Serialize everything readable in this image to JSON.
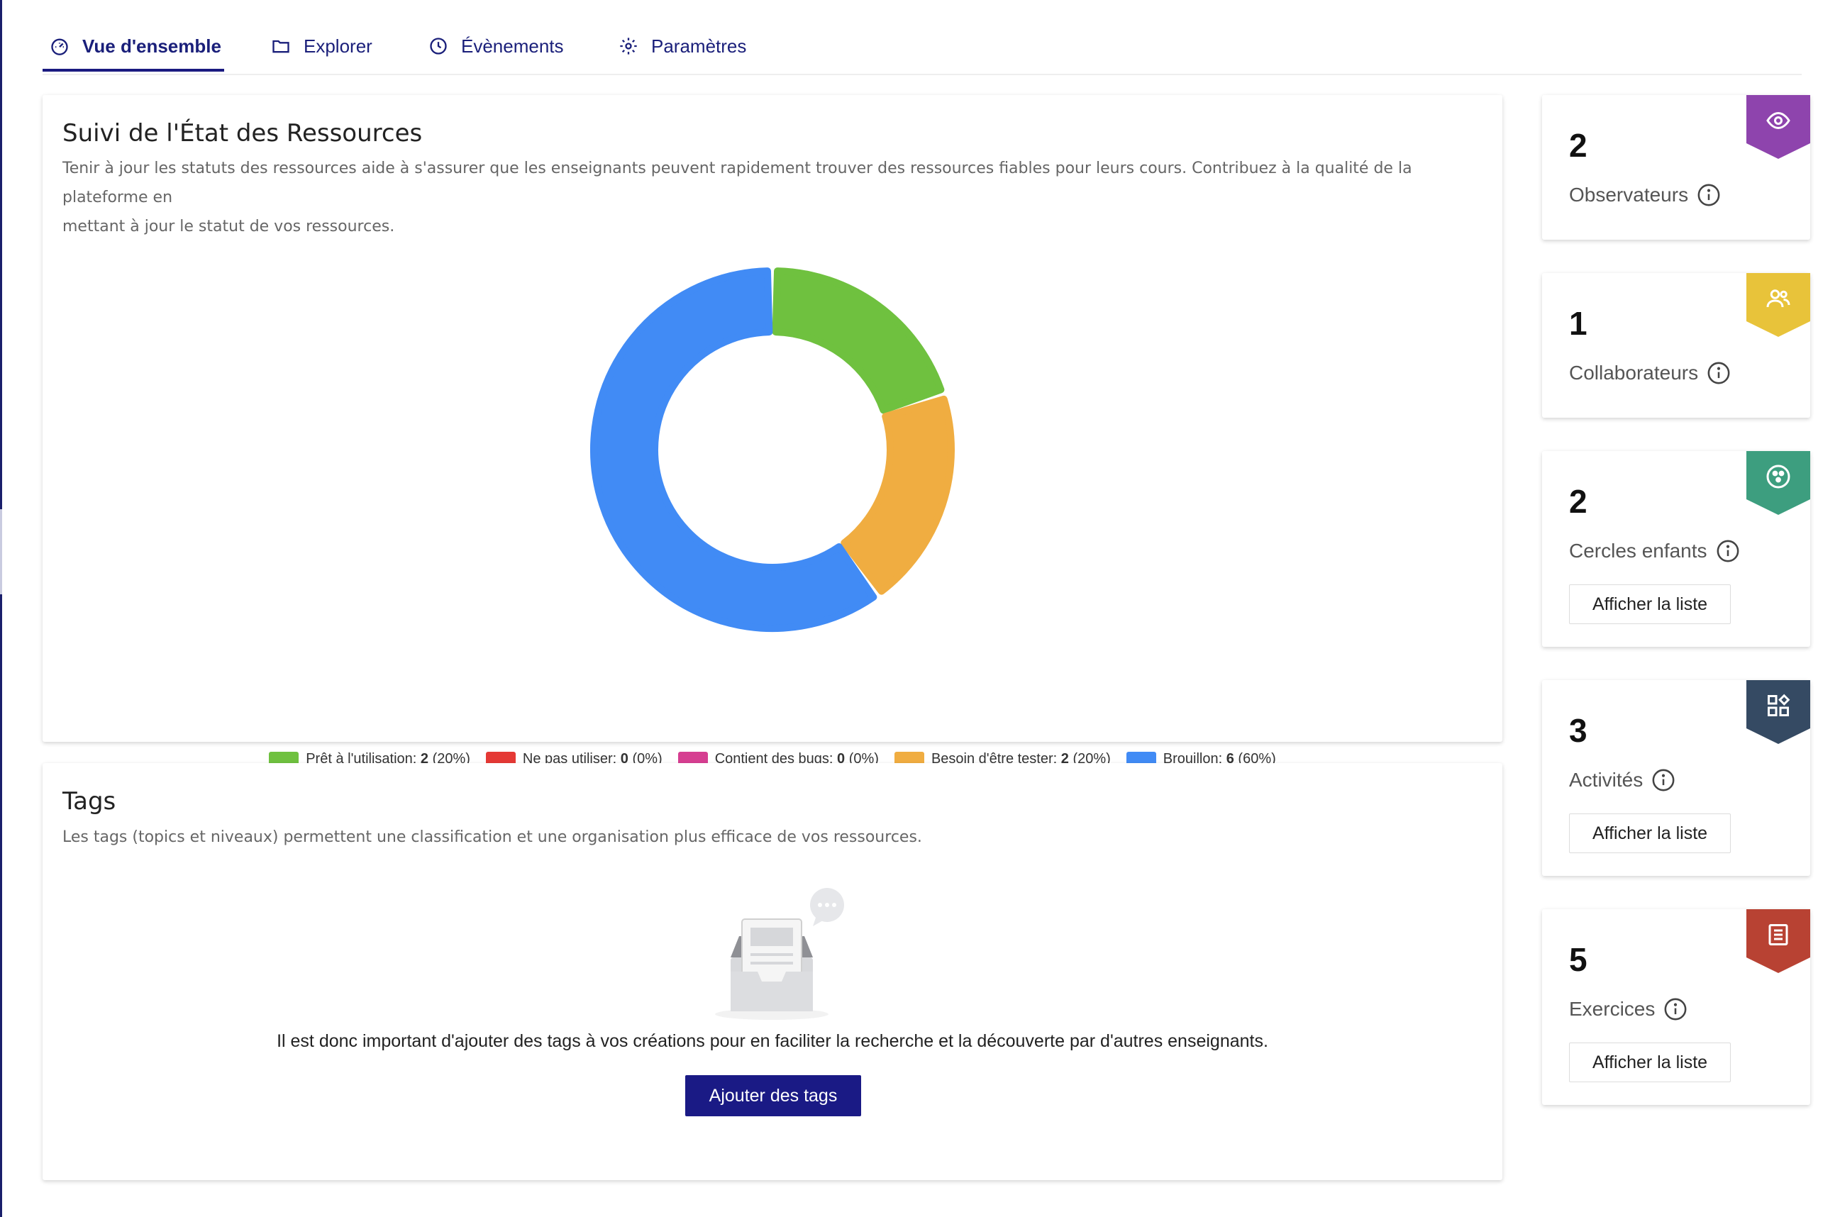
{
  "tabs": [
    {
      "label": "Vue d'ensemble",
      "icon": "dashboard-icon",
      "active": true
    },
    {
      "label": "Explorer",
      "icon": "folder-icon",
      "active": false
    },
    {
      "label": "Évènements",
      "icon": "clock-icon",
      "active": false
    },
    {
      "label": "Paramètres",
      "icon": "gear-icon",
      "active": false
    }
  ],
  "status_card": {
    "title": "Suivi de l'État des Ressources",
    "description_line1": "Tenir à jour les statuts des ressources aide à s'assurer que les enseignants peuvent rapidement trouver des ressources fiables pour leurs cours. Contribuez à la qualité de la plateforme en",
    "description_line2": "mettant à jour le statut de vos ressources."
  },
  "chart_data": {
    "type": "pie",
    "style": "donut",
    "title": "",
    "legend_placement": "bottom",
    "slices": [
      {
        "label": "Prêt à l'utilisation",
        "value": 2,
        "percent": "20%",
        "color": "#6fc13f"
      },
      {
        "label": "Ne pas utiliser",
        "value": 0,
        "percent": "0%",
        "color": "#e53935"
      },
      {
        "label": "Contient des bugs",
        "value": 0,
        "percent": "0%",
        "color": "#d63e91"
      },
      {
        "label": "Besoin d'être tester",
        "value": 2,
        "percent": "20%",
        "color": "#f0ad41"
      },
      {
        "label": "Brouillon",
        "value": 6,
        "percent": "60%",
        "color": "#418bf5"
      }
    ]
  },
  "tags_card": {
    "title": "Tags",
    "description": "Les tags (topics et niveaux) permettent une classification et une organisation plus efficace de vos ressources.",
    "empty_message": "Il est donc important d'ajouter des tags à vos créations pour en faciliter la recherche et la découverte par d'autres enseignants.",
    "button_label": "Ajouter des tags"
  },
  "stats": [
    {
      "value": "2",
      "label": "Observateurs",
      "icon": "eye-icon",
      "color": "#8e44ad",
      "has_button": false
    },
    {
      "value": "1",
      "label": "Collaborateurs",
      "icon": "users-icon",
      "color": "#e8c33a",
      "has_button": false
    },
    {
      "value": "2",
      "label": "Cercles enfants",
      "icon": "circles-icon",
      "color": "#3d9e7f",
      "has_button": true,
      "button_label": "Afficher la liste"
    },
    {
      "value": "3",
      "label": "Activités",
      "icon": "apps-icon",
      "color": "#354a63",
      "has_button": true,
      "button_label": "Afficher la liste"
    },
    {
      "value": "5",
      "label": "Exercices",
      "icon": "document-icon",
      "color": "#b84233",
      "has_button": true,
      "button_label": "Afficher la liste"
    }
  ]
}
